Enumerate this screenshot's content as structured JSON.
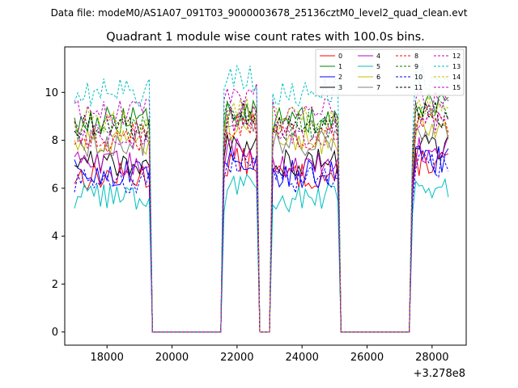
{
  "chart_data": {
    "type": "line",
    "suptitle": "Data file: modeM0/AS1A07_091T03_9000003678_25136cztM0_level2_quad_clean.evt",
    "title": "Quadrant 1 module wise count rates with 100.0s bins.",
    "xlabel": "",
    "ylabel": "",
    "x_offset_label": "+3.278e8",
    "xlim": [
      16700,
      29050
    ],
    "ylim": [
      -0.55,
      11.9
    ],
    "xticks": [
      18000,
      20000,
      22000,
      24000,
      26000,
      28000
    ],
    "xtick_labels": [
      "18000",
      "20000",
      "22000",
      "24000",
      "26000",
      "28000"
    ],
    "yticks": [
      0,
      2,
      4,
      6,
      8,
      10
    ],
    "ytick_labels": [
      "0",
      "2",
      "4",
      "6",
      "8",
      "10"
    ],
    "legend": {
      "position": "top-right",
      "columns": 4
    },
    "grid": false,
    "bin_seconds": 100,
    "x_start": 17000,
    "x_end": 28500,
    "gaps": [
      [
        19400,
        21500
      ],
      [
        22700,
        23000
      ],
      [
        25200,
        27300
      ]
    ],
    "series": [
      {
        "name": "0",
        "color": "#ff0000",
        "style": "solid",
        "level": 6.5
      },
      {
        "name": "1",
        "color": "#008000",
        "style": "solid",
        "level": 8.8
      },
      {
        "name": "2",
        "color": "#0000ff",
        "style": "solid",
        "level": 6.6
      },
      {
        "name": "3",
        "color": "#000000",
        "style": "solid",
        "level": 7.1
      },
      {
        "name": "4",
        "color": "#bf00bf",
        "style": "solid",
        "level": 7.0
      },
      {
        "name": "5",
        "color": "#00bfbf",
        "style": "solid",
        "level": 5.6
      },
      {
        "name": "6",
        "color": "#bfbf00",
        "style": "solid",
        "level": 8.0
      },
      {
        "name": "7",
        "color": "#808080",
        "style": "solid",
        "level": 7.9
      },
      {
        "name": "8",
        "color": "#ff0000",
        "style": "dashed",
        "level": 8.1
      },
      {
        "name": "9",
        "color": "#008000",
        "style": "dashed",
        "level": 8.6
      },
      {
        "name": "10",
        "color": "#0000ff",
        "style": "dashed",
        "level": 6.4
      },
      {
        "name": "11",
        "color": "#000000",
        "style": "dashed",
        "level": 8.5
      },
      {
        "name": "12",
        "color": "#bf00bf",
        "style": "dashed",
        "level": 9.2
      },
      {
        "name": "13",
        "color": "#00bfbf",
        "style": "dashed",
        "level": 10.0
      },
      {
        "name": "14",
        "color": "#bfbf00",
        "style": "dashed",
        "level": 8.8
      },
      {
        "name": "15",
        "color": "#bf00bf",
        "style": "dashed",
        "level": 8.3
      }
    ]
  }
}
